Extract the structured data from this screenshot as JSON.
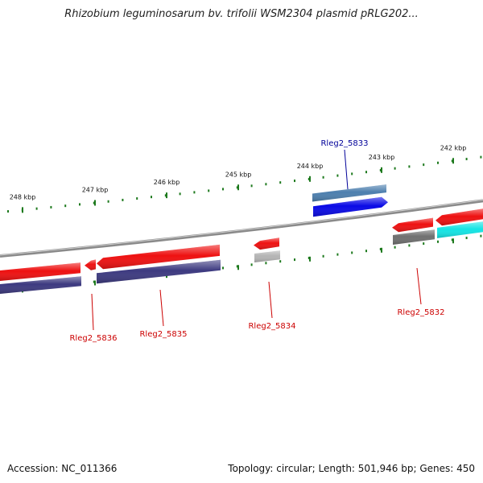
{
  "title": "Rhizobium leguminosarum bv. trifolii WSM2304 plasmid pRLG202...",
  "footer": {
    "accession": "Accession: NC_011366",
    "stats": "Topology: circular; Length: 501,946 bp; Genes: 450"
  },
  "colors": {
    "backbone": "#8a8a8a",
    "tick": "#1e7a1e",
    "cds_red": "#ee1111",
    "cds_blue": "#0a0ae6",
    "cds_navy": "#3d3a80",
    "cds_gray": "#707070",
    "cds_lightgray": "#b4b4b4",
    "cds_cyan": "#14e4e4",
    "cds_steelblue": "#4d7fae",
    "label_red": "#cc0000",
    "label_blue": "#000099"
  },
  "chart_data": {
    "type": "genome-map",
    "ticks_kbp": [
      {
        "kbp": 248,
        "label": "248 kbp"
      },
      {
        "kbp": 247,
        "label": "247 kbp"
      },
      {
        "kbp": 246,
        "label": "246 kbp"
      },
      {
        "kbp": 245,
        "label": "245 kbp"
      },
      {
        "kbp": 244,
        "label": "244 kbp"
      },
      {
        "kbp": 243,
        "label": "243 kbp"
      },
      {
        "kbp": 242,
        "label": "242 kbp"
      }
    ],
    "genes": [
      {
        "name": "Rleg2_5836"
      },
      {
        "name": "Rleg2_5835"
      },
      {
        "name": "Rleg2_5834"
      },
      {
        "name": "Rleg2_5833"
      },
      {
        "name": "Rleg2_5832"
      }
    ]
  }
}
